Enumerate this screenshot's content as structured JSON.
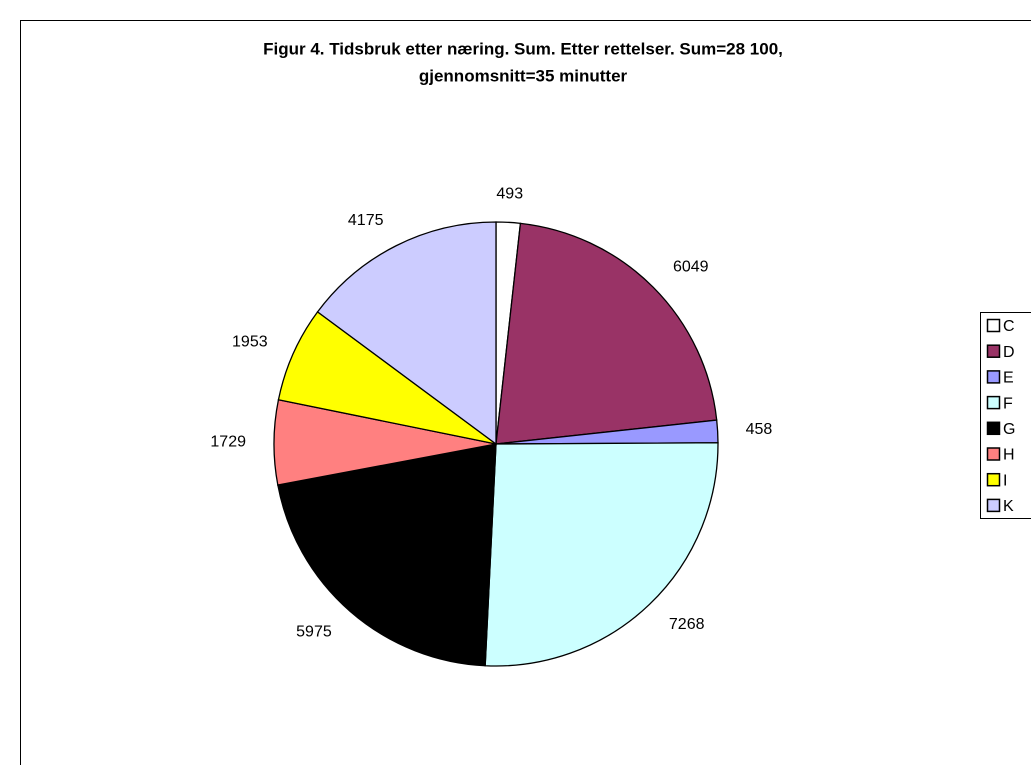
{
  "chart_data": {
    "type": "pie",
    "title": [
      "Figur 4. Tidsbruk etter næring. Sum. Etter rettelser. Sum=28 100,",
      "gjennomsnitt=35 minutter"
    ],
    "categories": [
      "C",
      "D",
      "E",
      "F",
      "G",
      "H",
      "I",
      "K"
    ],
    "values": [
      493,
      6049,
      458,
      7268,
      5975,
      1729,
      1953,
      4175
    ],
    "colors": [
      "#ffffff",
      "#993366",
      "#9999ff",
      "#ccffff",
      "#000000",
      "#ff8080",
      "#ffff00",
      "#ccccff"
    ],
    "legend": "right"
  }
}
